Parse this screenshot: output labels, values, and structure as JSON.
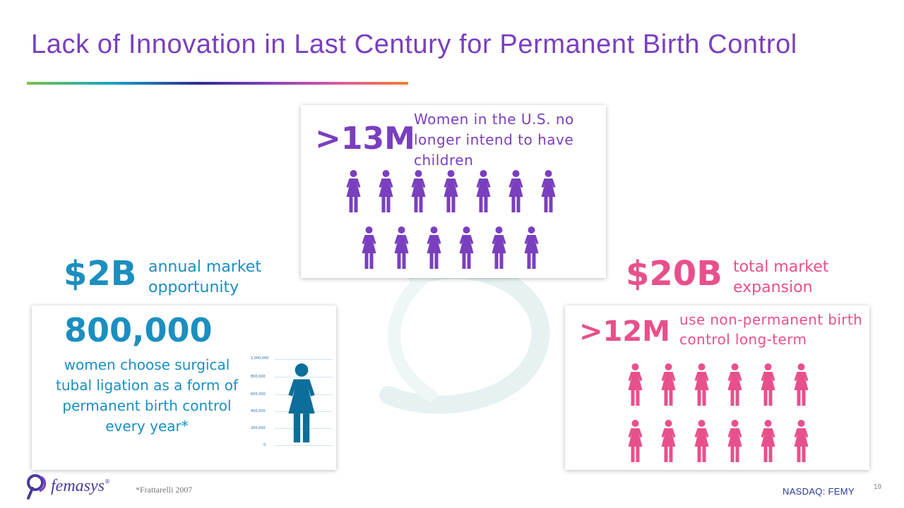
{
  "title": "Lack of Innovation in Last Century for Permanent Birth Control",
  "top_card": {
    "stat": ">13M",
    "description": "Women in the U.S. no longer intend to have children",
    "icon_color": "#7a3fbf"
  },
  "left_callout": {
    "stat": "$2B",
    "label": "annual market opportunity"
  },
  "left_card": {
    "stat": "800,000",
    "description": "women choose surgical tubal ligation as a form of permanent birth control every year*",
    "chart_ticks": [
      "1,000,000",
      "800,000",
      "600,000",
      "400,000",
      "200,000",
      "0"
    ],
    "icon_color": "#0d6e9a"
  },
  "right_callout": {
    "stat": "$20B",
    "label": "total market expansion"
  },
  "right_card": {
    "stat": ">12M",
    "description": "use non-permanent birth control long-term",
    "icon_color": "#e8508c"
  },
  "footer": {
    "footnote": "*Frattarelli 2007",
    "ticker": "NASDAQ: FEMY",
    "page": "19",
    "logo_text": "femasys",
    "logo_mark": "®"
  },
  "colors": {
    "title": "#7a3fbf",
    "purple": "#7a3fbf",
    "blue": "#1a8fc0",
    "pink": "#e8508c"
  }
}
